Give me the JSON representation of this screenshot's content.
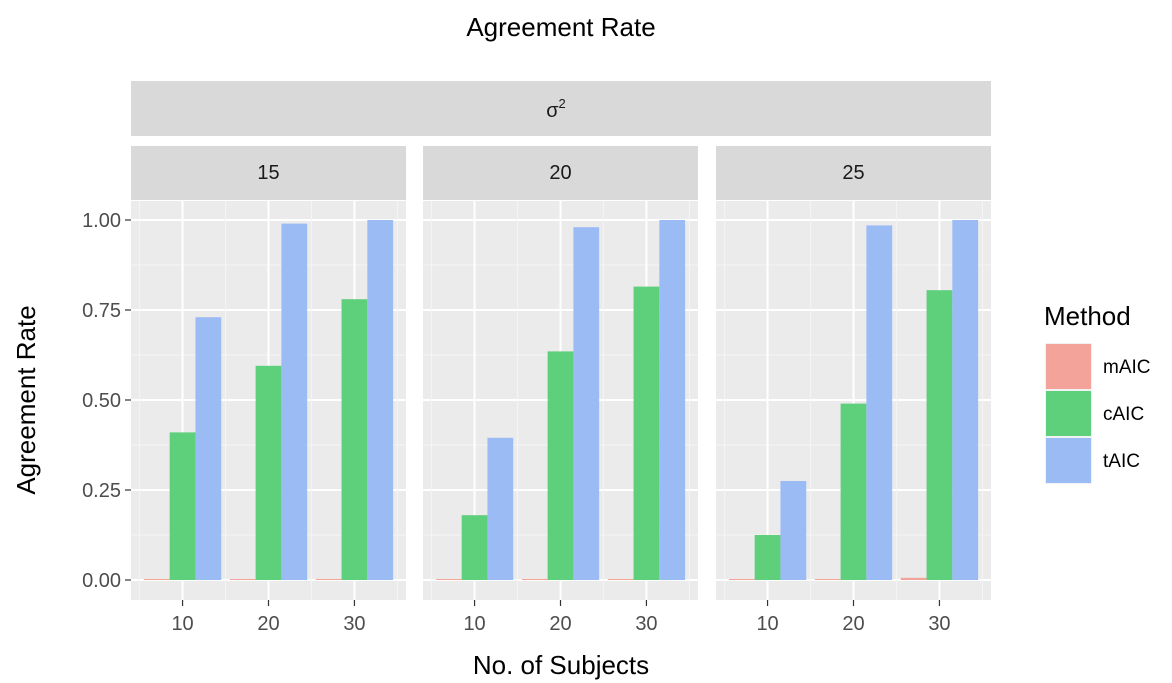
{
  "chart_data": {
    "type": "bar",
    "title": "Agreement Rate",
    "xlabel": "No. of Subjects",
    "ylabel": "Agreement Rate",
    "facet_label": "σ",
    "facet_label_sup": "2",
    "facets": [
      "15",
      "20",
      "25"
    ],
    "categories": [
      "10",
      "20",
      "30"
    ],
    "ylim": [
      0,
      1.05
    ],
    "yticks": [
      "0.00",
      "0.25",
      "0.50",
      "0.75",
      "1.00"
    ],
    "ytick_values": [
      0,
      0.25,
      0.5,
      0.75,
      1.0
    ],
    "legend_title": "Method",
    "legend_position": "right",
    "grid": true,
    "series": [
      {
        "name": "mAIC",
        "color": "#F4A39B",
        "values": [
          [
            0.002,
            0.002,
            0.002
          ],
          [
            0.002,
            0.002,
            0.002
          ],
          [
            0.002,
            0.002,
            0.006
          ]
        ]
      },
      {
        "name": "cAIC",
        "color": "#5ECF7B",
        "values": [
          [
            0.41,
            0.595,
            0.78
          ],
          [
            0.18,
            0.635,
            0.815
          ],
          [
            0.125,
            0.49,
            0.805
          ]
        ]
      },
      {
        "name": "tAIC",
        "color": "#9BBBF5",
        "values": [
          [
            0.73,
            0.99,
            1.0
          ],
          [
            0.395,
            0.98,
            1.0
          ],
          [
            0.275,
            0.985,
            1.0
          ]
        ]
      }
    ]
  }
}
